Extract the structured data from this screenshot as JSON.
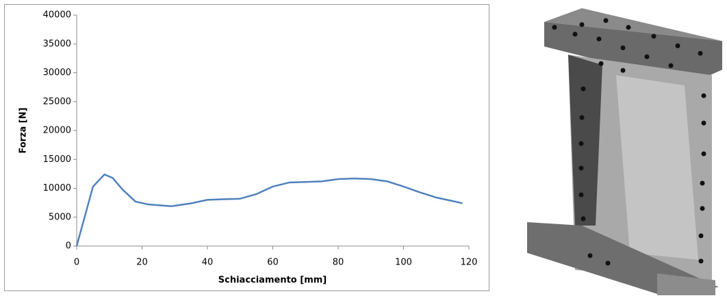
{
  "chart_data": {
    "type": "line",
    "x_label": "Schiacciamento [mm]",
    "y_label": "Forza [N]",
    "x": [
      0,
      5,
      8.5,
      11,
      14,
      18,
      22,
      29,
      35,
      40,
      45,
      50,
      55,
      60,
      65,
      70,
      75,
      80,
      85,
      90,
      95,
      100,
      105,
      110,
      115,
      118
    ],
    "values": [
      0,
      10300,
      12400,
      11800,
      9800,
      7700,
      7200,
      6900,
      7400,
      8000,
      8100,
      8200,
      9000,
      10300,
      11000,
      11100,
      11200,
      11600,
      11700,
      11600,
      11200,
      10300,
      9300,
      8400,
      7800,
      7400
    ],
    "color": "#4f81bd",
    "xlim": [
      0,
      120
    ],
    "xticks": [
      0,
      20,
      40,
      60,
      80,
      100,
      120
    ],
    "ylim": [
      0,
      40000
    ],
    "yticks": [
      0,
      5000,
      10000,
      15000,
      20000,
      25000,
      30000,
      35000,
      40000
    ],
    "grid": false
  }
}
